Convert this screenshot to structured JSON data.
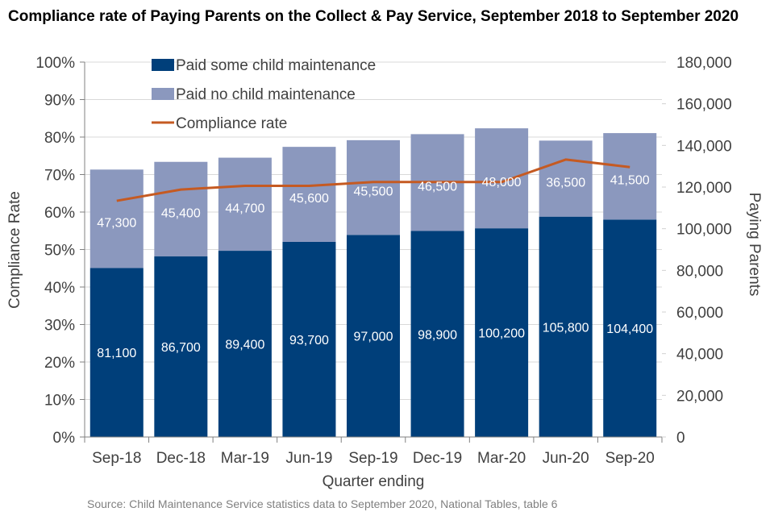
{
  "chart_data": {
    "type": "bar",
    "subtype": "stacked-bar-with-line",
    "title": "Compliance rate of Paying Parents on the Collect & Pay Service, September 2018 to September 2020",
    "xlabel": "Quarter ending",
    "ylabel_left": "Compliance Rate",
    "ylabel_right": "Paying Parents",
    "categories": [
      "Sep-18",
      "Dec-18",
      "Mar-19",
      "Jun-19",
      "Sep-19",
      "Dec-19",
      "Mar-20",
      "Jun-20",
      "Sep-20"
    ],
    "series": [
      {
        "name": "Paid some child maintenance",
        "type": "bar",
        "axis": "right",
        "color": "#003f7a",
        "values": [
          81100,
          86700,
          89400,
          93700,
          97000,
          98900,
          100200,
          105800,
          104400
        ],
        "labels": [
          "81,100",
          "86,700",
          "89,400",
          "93,700",
          "97,000",
          "98,900",
          "100,200",
          "105,800",
          "104,400"
        ]
      },
      {
        "name": "Paid no child maintenance",
        "type": "bar",
        "axis": "right",
        "color": "#8b98be",
        "values": [
          47300,
          45400,
          44700,
          45600,
          45500,
          46500,
          48000,
          36500,
          41500
        ],
        "labels": [
          "47,300",
          "45,400",
          "44,700",
          "45,600",
          "45,500",
          "46,500",
          "48,000",
          "36,500",
          "41,500"
        ]
      },
      {
        "name": "Compliance rate",
        "type": "line",
        "axis": "left",
        "color": "#c55a22",
        "values": [
          63,
          66,
          67,
          67,
          68,
          68,
          68,
          74,
          72
        ]
      }
    ],
    "yleft": {
      "ylim": [
        0,
        100
      ],
      "ticks": [
        0,
        10,
        20,
        30,
        40,
        50,
        60,
        70,
        80,
        90,
        100
      ],
      "tick_labels": [
        "0%",
        "10%",
        "20%",
        "30%",
        "40%",
        "50%",
        "60%",
        "70%",
        "80%",
        "90%",
        "100%"
      ]
    },
    "yright": {
      "ylim": [
        0,
        180000
      ],
      "ticks": [
        0,
        20000,
        40000,
        60000,
        80000,
        100000,
        120000,
        140000,
        160000,
        180000
      ],
      "tick_labels": [
        "0",
        "20,000",
        "40,000",
        "60,000",
        "80,000",
        "100,000",
        "120,000",
        "140,000",
        "160,000",
        "180,000"
      ]
    },
    "grid": true,
    "legend_position": "top-left",
    "source": "Source:  Child Maintenance  Service statistics data to September 2020, National Tables, table 6"
  }
}
